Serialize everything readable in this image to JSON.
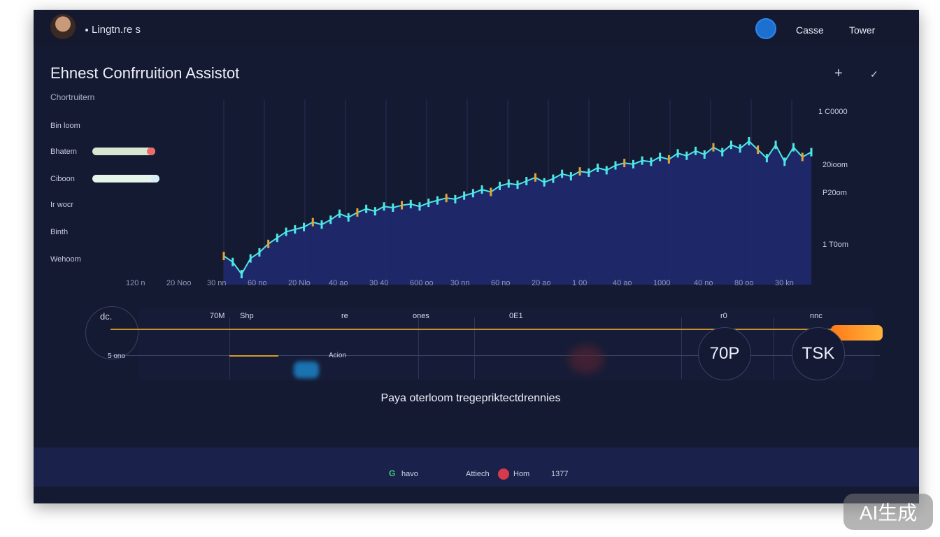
{
  "header": {
    "app_name": "Lingtn.re s",
    "link_1": "Casse",
    "link_2": "Tower"
  },
  "page": {
    "title": "Ehnest Confrruition Assistot",
    "section_label": "Chortruitern",
    "add_icon": "+",
    "link_icon": "✓"
  },
  "left_rows": [
    {
      "label": "Bin loom"
    },
    {
      "label": "Bhatem"
    },
    {
      "label": "Ciboon"
    },
    {
      "label": "Ir wocr"
    },
    {
      "label": "Binth"
    },
    {
      "label": "Wehoom"
    }
  ],
  "chart_data": {
    "type": "line",
    "x_ticks": [
      "120 n",
      "20 Noo",
      "30 nn",
      "60 no",
      "20 Nlo",
      "40 ao",
      "30 40",
      "600 oo",
      "30 nn",
      "60 no",
      "20 ao",
      "1 00",
      "40 ao",
      "1000",
      "40 no",
      "80 oo",
      "30 kn"
    ],
    "right_labels": [
      "1 C0000",
      "20ioom",
      "P20om",
      "1 T0om"
    ],
    "values": [
      60,
      55,
      45,
      58,
      63,
      70,
      75,
      80,
      82,
      84,
      88,
      86,
      90,
      95,
      92,
      96,
      99,
      97,
      101,
      100,
      102,
      103,
      101,
      104,
      106,
      108,
      107,
      110,
      112,
      115,
      113,
      118,
      120,
      119,
      122,
      125,
      121,
      124,
      128,
      126,
      130,
      129,
      133,
      131,
      135,
      137,
      136,
      139,
      138,
      142,
      140,
      145,
      143,
      147,
      144,
      150,
      146,
      152,
      149,
      155,
      148,
      141,
      152,
      138,
      150,
      142,
      146
    ],
    "series_name": ""
  },
  "timeline": {
    "label_start": "dc.",
    "markers": [
      "70M",
      "Shp",
      "re",
      "ones",
      "0E1",
      "r0",
      "nnc"
    ],
    "value_label": "Acion",
    "slider_value": 0.97,
    "ring_1": "70P",
    "ring_2": "TSK",
    "start_value": "5 ono"
  },
  "caption": "Paya oterloom tregepriktectdrennies",
  "footer": {
    "g_label": "G",
    "item_1": "havo",
    "item_2": "Attiech",
    "item_3": "Hom",
    "count": "1377"
  },
  "watermark": "AI生成",
  "colors": {
    "accent": "#4ee6e6",
    "slider": "#ff8a1f",
    "area": "#1f2a6e"
  }
}
